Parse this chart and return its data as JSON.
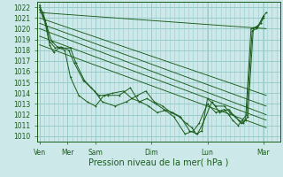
{
  "bg_color": "#cce8e8",
  "grid_color": "#99cccc",
  "line_color": "#1a5c1a",
  "xlabel": "Pression niveau de la mer( hPa )",
  "ylim": [
    1009.5,
    1022.5
  ],
  "yticks": [
    1010,
    1011,
    1012,
    1013,
    1014,
    1015,
    1016,
    1017,
    1018,
    1019,
    1020,
    1021,
    1022
  ],
  "xtick_labels": [
    "Ven",
    "Mer",
    "Sam",
    "Dim",
    "Lun",
    "Mar"
  ],
  "xtick_positions": [
    0,
    0.5,
    1.0,
    2.0,
    3.0,
    4.0
  ],
  "xlim": [
    -0.05,
    4.3
  ],
  "series": [
    [
      0.0,
      1021.8,
      0.05,
      1021.2,
      0.1,
      1020.5,
      0.18,
      1018.5,
      0.25,
      1017.8,
      0.35,
      1018.2,
      0.45,
      1018.0,
      0.55,
      1015.5,
      0.7,
      1013.8,
      0.85,
      1013.2,
      1.0,
      1012.8,
      1.15,
      1013.8,
      1.3,
      1014.0,
      1.5,
      1014.2,
      1.65,
      1013.5,
      1.8,
      1013.2,
      1.95,
      1012.8,
      2.1,
      1012.2,
      2.25,
      1012.4,
      2.4,
      1011.8,
      2.6,
      1010.2,
      2.75,
      1010.5,
      2.85,
      1011.2,
      3.0,
      1013.0,
      3.15,
      1012.2,
      3.3,
      1012.5,
      3.38,
      1012.0,
      3.45,
      1011.5,
      3.55,
      1011.0,
      3.62,
      1011.5,
      3.7,
      1012.0,
      3.8,
      1019.8,
      3.88,
      1020.0,
      3.95,
      1020.5,
      4.0,
      1021.2
    ],
    [
      0.0,
      1022.0,
      0.06,
      1021.5,
      0.13,
      1020.2,
      0.22,
      1018.8,
      0.32,
      1018.3,
      0.42,
      1018.2,
      0.55,
      1018.2,
      0.65,
      1016.8,
      0.8,
      1015.2,
      0.98,
      1014.2,
      1.12,
      1013.2,
      1.35,
      1012.8,
      1.55,
      1013.2,
      1.75,
      1013.8,
      1.9,
      1014.2,
      2.05,
      1013.2,
      2.2,
      1012.8,
      2.35,
      1012.2,
      2.5,
      1011.8,
      2.62,
      1011.2,
      2.72,
      1010.8,
      2.8,
      1010.2,
      2.9,
      1010.5,
      3.0,
      1013.5,
      3.15,
      1012.8,
      3.3,
      1012.8,
      3.4,
      1012.2,
      3.5,
      1011.8,
      3.6,
      1011.2,
      3.68,
      1011.5,
      3.78,
      1020.0,
      3.88,
      1020.2,
      3.95,
      1020.5,
      4.0,
      1021.0
    ],
    [
      0.0,
      1022.2,
      0.04,
      1021.5,
      0.1,
      1020.8,
      0.18,
      1018.8,
      0.28,
      1018.2,
      0.38,
      1018.3,
      0.52,
      1018.0,
      0.62,
      1016.8,
      0.78,
      1015.2,
      0.92,
      1014.5,
      1.06,
      1013.8,
      1.22,
      1013.8,
      1.42,
      1013.8,
      1.62,
      1014.5,
      1.78,
      1013.2,
      1.92,
      1013.5,
      2.08,
      1013.0,
      2.22,
      1012.5,
      2.38,
      1012.2,
      2.52,
      1011.8,
      2.68,
      1010.5,
      2.82,
      1010.2,
      2.92,
      1011.2,
      3.08,
      1013.2,
      3.22,
      1012.2,
      3.38,
      1012.5,
      3.46,
      1012.0,
      3.56,
      1011.5,
      3.64,
      1011.2,
      3.72,
      1011.8,
      3.82,
      1020.0,
      3.9,
      1020.2,
      3.98,
      1021.0,
      4.05,
      1021.5
    ],
    [
      0.0,
      1021.5,
      4.05,
      1020.0
    ],
    [
      0.0,
      1021.0,
      4.05,
      1013.8
    ],
    [
      0.0,
      1020.5,
      4.05,
      1012.8
    ],
    [
      0.0,
      1020.0,
      4.05,
      1012.0
    ],
    [
      0.0,
      1019.3,
      4.05,
      1011.5
    ],
    [
      0.0,
      1018.5,
      4.05,
      1010.8
    ]
  ],
  "marker_series": [
    0,
    1,
    2
  ],
  "tick_fontsize": 5.5,
  "xlabel_fontsize": 7.0
}
